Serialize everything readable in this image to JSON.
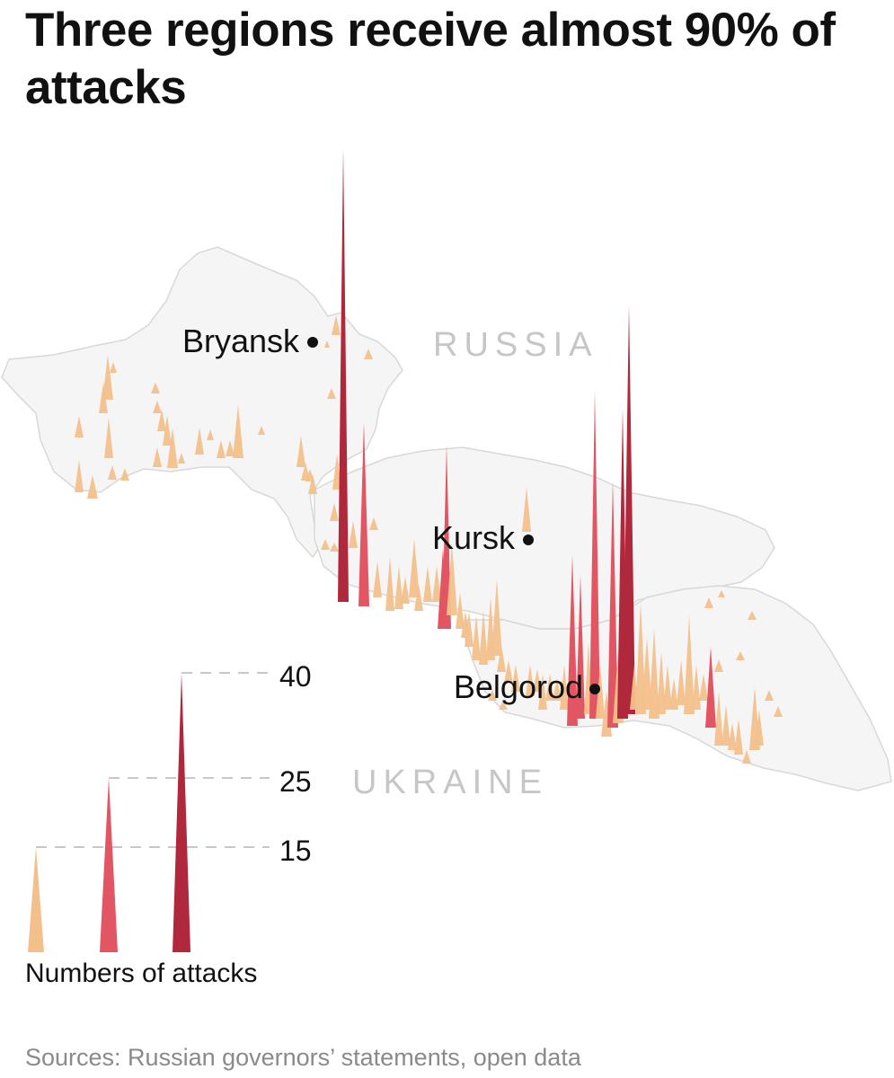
{
  "title": "Three regions receive almost 90% of attacks",
  "source": "Sources: Russian governors’ statements, open data",
  "countries": {
    "russia": "RUSSIA",
    "ukraine": "UKRAINE"
  },
  "cities": [
    {
      "id": "bryansk",
      "label": "Bryansk"
    },
    {
      "id": "kursk",
      "label": "Kursk"
    },
    {
      "id": "belgorod",
      "label": "Belgorod"
    }
  ],
  "legend": {
    "title": "Numbers of attacks",
    "ticks": [
      {
        "label": "40",
        "value": 40,
        "color": "#b0283c"
      },
      {
        "label": "25",
        "value": 25,
        "color": "#e25563"
      },
      {
        "label": "15",
        "value": 15,
        "color": "#f3c08c"
      }
    ]
  },
  "colors": {
    "low": "#f3c08c",
    "mid": "#e25563",
    "high": "#b0283c",
    "land": "#f5f5f5"
  }
}
